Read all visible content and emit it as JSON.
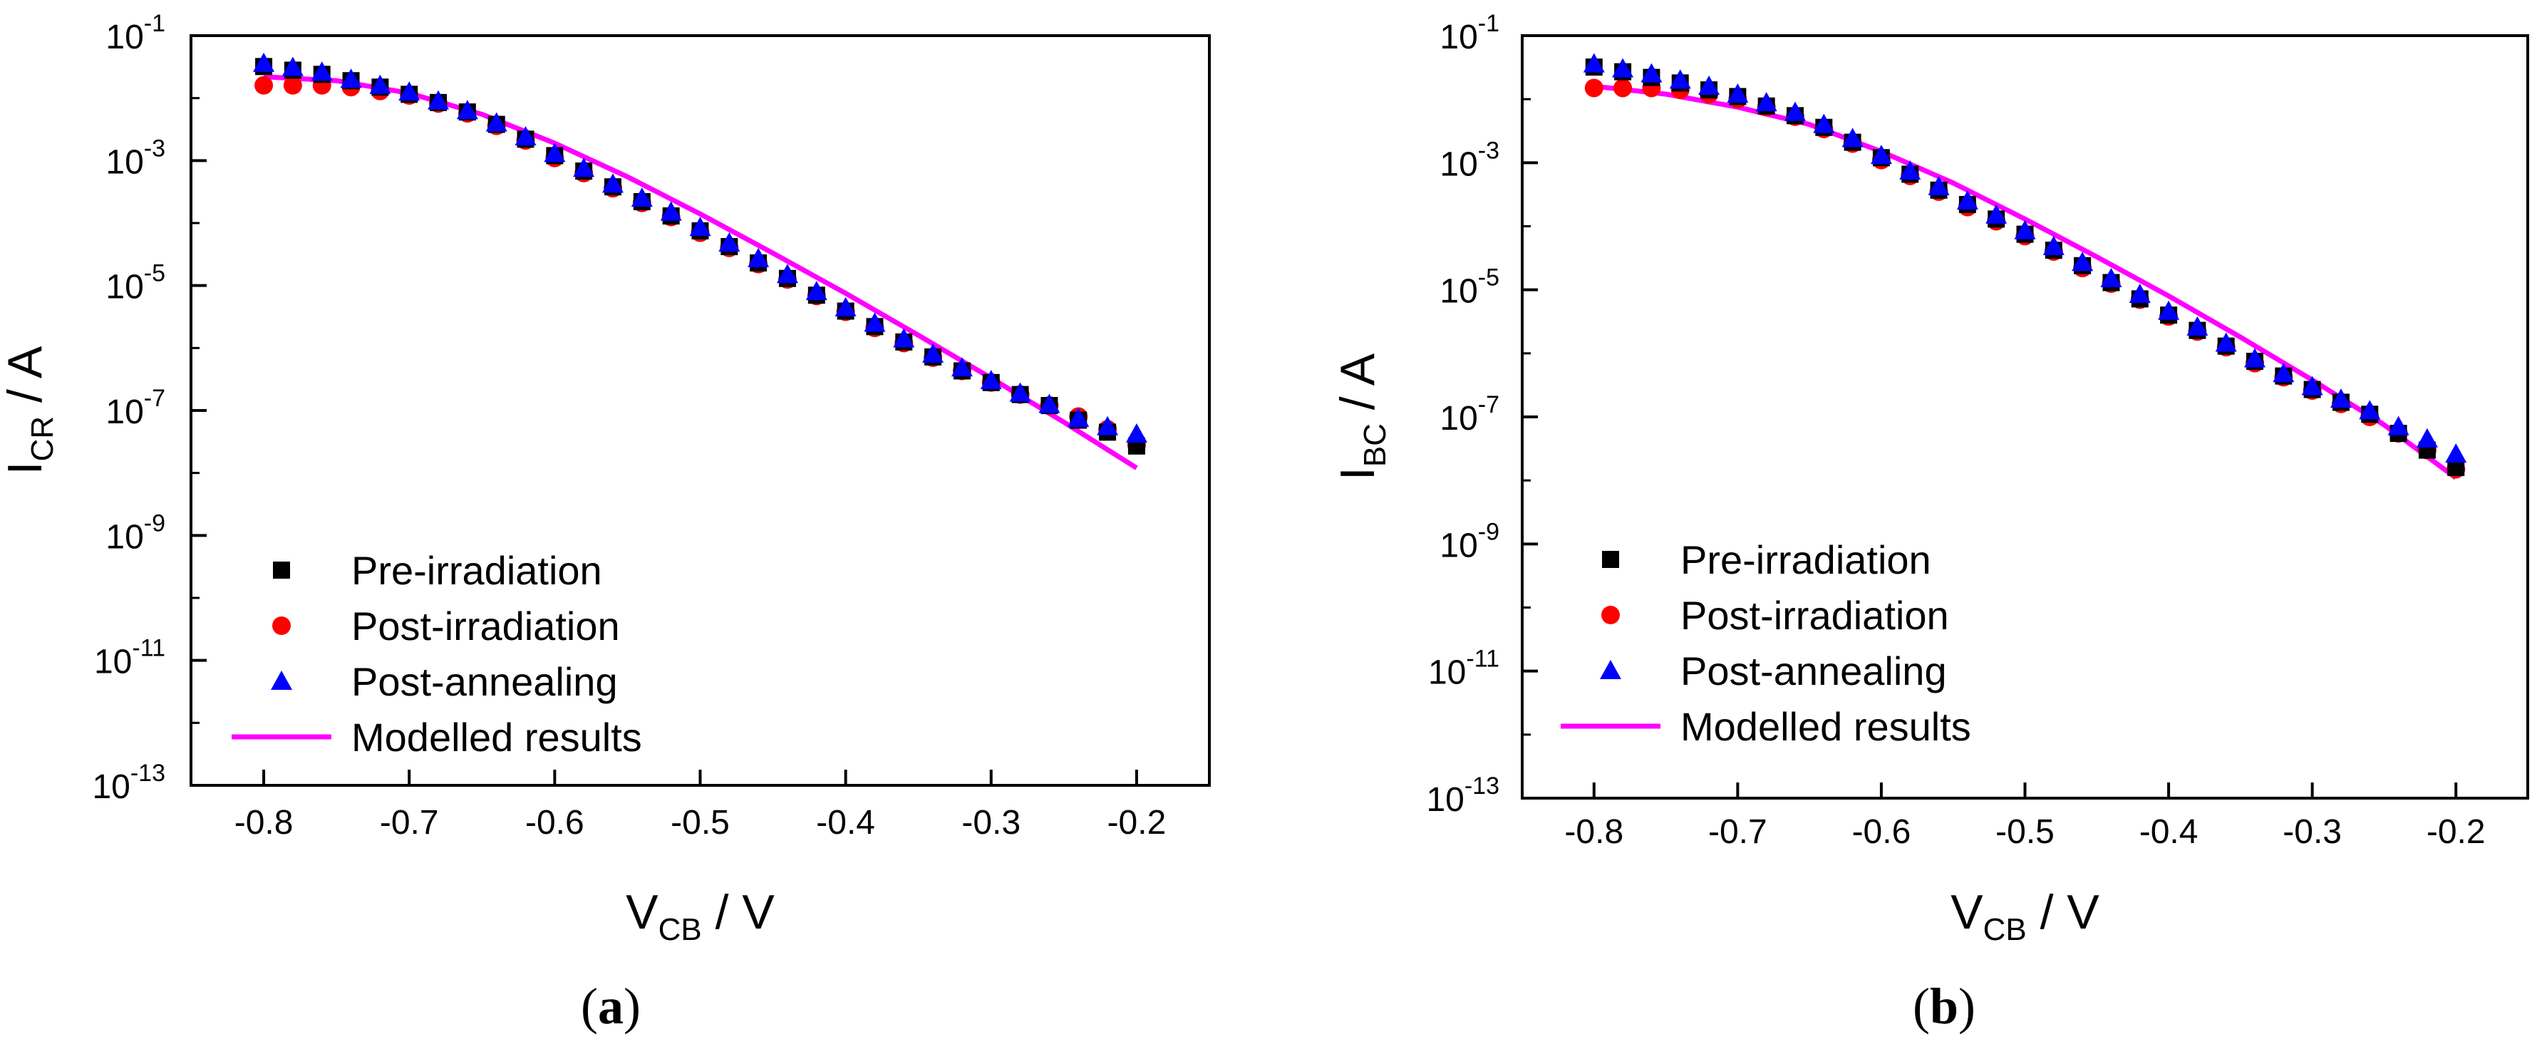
{
  "chart_data": [
    {
      "type": "scatter",
      "panel_label": "a",
      "ylabel_main": "I",
      "ylabel_sub": "CR",
      "ylabel_rest": " / A",
      "xlabel_main": "V",
      "xlabel_sub": "CB",
      "xlabel_rest": " / V",
      "xlim": [
        -0.85,
        -0.15
      ],
      "ylim_exp": [
        -13,
        -1
      ],
      "yscale": "log",
      "x_ticks": [
        -0.8,
        -0.7,
        -0.6,
        -0.5,
        -0.4,
        -0.3,
        -0.2
      ],
      "x_tick_labels": [
        "-0.8",
        "-0.7",
        "-0.6",
        "-0.5",
        "-0.4",
        "-0.3",
        "-0.2"
      ],
      "y_tick_exponents": [
        -1,
        -3,
        -5,
        -7,
        -9,
        -11,
        -13
      ],
      "y_tick_labels": [
        {
          "base": "10",
          "exp": "-1"
        },
        {
          "base": "10",
          "exp": "-3"
        },
        {
          "base": "10",
          "exp": "-5"
        },
        {
          "base": "10",
          "exp": "-7"
        },
        {
          "base": "10",
          "exp": "-9"
        },
        {
          "base": "10",
          "exp": "-11"
        },
        {
          "base": "10",
          "exp": "-13"
        }
      ],
      "legend_position": "lower-left",
      "series": [
        {
          "name": "Pre-irradiation",
          "marker": "square",
          "color": "#000000",
          "x": [
            -0.8,
            -0.78,
            -0.76,
            -0.74,
            -0.72,
            -0.7,
            -0.68,
            -0.66,
            -0.64,
            -0.62,
            -0.6,
            -0.58,
            -0.56,
            -0.54,
            -0.52,
            -0.5,
            -0.48,
            -0.46,
            -0.44,
            -0.42,
            -0.4,
            -0.38,
            -0.36,
            -0.34,
            -0.32,
            -0.3,
            -0.28,
            -0.26,
            -0.24,
            -0.22,
            -0.2
          ],
          "y": [
            0.032,
            0.028,
            0.024,
            0.019,
            0.015,
            0.0115,
            0.0085,
            0.006,
            0.0038,
            0.0022,
            0.0012,
            0.00068,
            0.00038,
            0.00022,
            0.00013,
            7.5e-05,
            4.2e-05,
            2.3e-05,
            1.3e-05,
            7e-06,
            3.9e-06,
            2.2e-06,
            1.25e-06,
            7.2e-07,
            4.3e-07,
            2.8e-07,
            1.8e-07,
            1.2e-07,
            7e-08,
            4.5e-08,
            2.7e-08
          ]
        },
        {
          "name": "Post-irradiation",
          "marker": "circle",
          "color": "#ff0000",
          "x": [
            -0.8,
            -0.78,
            -0.76,
            -0.74,
            -0.72,
            -0.7,
            -0.68,
            -0.66,
            -0.64,
            -0.62,
            -0.6,
            -0.58,
            -0.56,
            -0.54,
            -0.52,
            -0.5,
            -0.48,
            -0.46,
            -0.44,
            -0.42,
            -0.4,
            -0.38,
            -0.36,
            -0.34,
            -0.32,
            -0.3,
            -0.28,
            -0.26,
            -0.24,
            -0.22,
            -0.2
          ],
          "y": [
            0.016,
            0.016,
            0.016,
            0.015,
            0.013,
            0.011,
            0.0082,
            0.0057,
            0.0036,
            0.0021,
            0.0011,
            0.00063,
            0.00036,
            0.00021,
            0.000125,
            7e-05,
            4e-05,
            2.2e-05,
            1.25e-05,
            6.8e-06,
            3.8e-06,
            2.1e-06,
            1.2e-06,
            7e-07,
            4.3e-07,
            2.8e-07,
            1.8e-07,
            1.2e-07,
            8e-08,
            5e-08,
            2.8e-08
          ]
        },
        {
          "name": "Post-annealing",
          "marker": "triangle",
          "color": "#0000ff",
          "x": [
            -0.8,
            -0.78,
            -0.76,
            -0.74,
            -0.72,
            -0.7,
            -0.68,
            -0.66,
            -0.64,
            -0.62,
            -0.6,
            -0.58,
            -0.56,
            -0.54,
            -0.52,
            -0.5,
            -0.48,
            -0.46,
            -0.44,
            -0.42,
            -0.4,
            -0.38,
            -0.36,
            -0.34,
            -0.32,
            -0.3,
            -0.28,
            -0.26,
            -0.24,
            -0.22,
            -0.2
          ],
          "y": [
            0.036,
            0.031,
            0.026,
            0.02,
            0.016,
            0.0125,
            0.009,
            0.0063,
            0.004,
            0.0024,
            0.0013,
            0.00075,
            0.00042,
            0.00025,
            0.00015,
            8.5e-05,
            4.8e-05,
            2.7e-05,
            1.5e-05,
            8e-06,
            4.4e-06,
            2.5e-06,
            1.4e-06,
            8e-07,
            4.8e-07,
            3e-07,
            1.9e-07,
            1.25e-07,
            7.5e-08,
            5.5e-08,
            4.2e-08
          ]
        },
        {
          "name": "Modelled results",
          "marker": "line",
          "color": "#ff00ff",
          "x": [
            -0.8,
            -0.75,
            -0.7,
            -0.65,
            -0.6,
            -0.55,
            -0.5,
            -0.45,
            -0.4,
            -0.35,
            -0.3,
            -0.25,
            -0.2
          ],
          "y": [
            0.022,
            0.019,
            0.012,
            0.0055,
            0.0019,
            0.00055,
            0.00014,
            3.3e-05,
            7.5e-06,
            1.6e-06,
            3.3e-07,
            6.5e-08,
            1.2e-08
          ]
        }
      ]
    },
    {
      "type": "scatter",
      "panel_label": "b",
      "ylabel_main": "I",
      "ylabel_sub": "BC",
      "ylabel_rest": " / A",
      "xlabel_main": "V",
      "xlabel_sub": "CB",
      "xlabel_rest": " / V",
      "xlim": [
        -0.85,
        -0.15
      ],
      "ylim_exp": [
        -13,
        -1
      ],
      "yscale": "log",
      "x_ticks": [
        -0.8,
        -0.7,
        -0.6,
        -0.5,
        -0.4,
        -0.3,
        -0.2
      ],
      "x_tick_labels": [
        "-0.8",
        "-0.7",
        "-0.6",
        "-0.5",
        "-0.4",
        "-0.3",
        "-0.2"
      ],
      "y_tick_exponents": [
        -1,
        -3,
        -5,
        -7,
        -9,
        -11,
        -13
      ],
      "y_tick_labels": [
        {
          "base": "10",
          "exp": "-1"
        },
        {
          "base": "10",
          "exp": "-3"
        },
        {
          "base": "10",
          "exp": "-5"
        },
        {
          "base": "10",
          "exp": "-7"
        },
        {
          "base": "10",
          "exp": "-9"
        },
        {
          "base": "10",
          "exp": "-11"
        },
        {
          "base": "10",
          "exp": "-13"
        }
      ],
      "legend_position": "lower-left",
      "series": [
        {
          "name": "Pre-irradiation",
          "marker": "square",
          "color": "#000000",
          "x": [
            -0.8,
            -0.78,
            -0.76,
            -0.74,
            -0.72,
            -0.7,
            -0.68,
            -0.66,
            -0.64,
            -0.62,
            -0.6,
            -0.58,
            -0.56,
            -0.54,
            -0.52,
            -0.5,
            -0.48,
            -0.46,
            -0.44,
            -0.42,
            -0.4,
            -0.38,
            -0.36,
            -0.34,
            -0.32,
            -0.3,
            -0.28,
            -0.26,
            -0.24,
            -0.22,
            -0.2
          ],
          "y": [
            0.032,
            0.027,
            0.022,
            0.018,
            0.014,
            0.011,
            0.0078,
            0.0055,
            0.0036,
            0.0021,
            0.0012,
            0.00066,
            0.00037,
            0.00022,
            0.00013,
            7.5e-05,
            4.2e-05,
            2.4e-05,
            1.3e-05,
            7.2e-06,
            4e-06,
            2.3e-06,
            1.3e-06,
            7.5e-07,
            4.4e-07,
            2.7e-07,
            1.7e-07,
            1.1e-07,
            5.5e-08,
            3e-08,
            1.6e-08
          ]
        },
        {
          "name": "Post-irradiation",
          "marker": "circle",
          "color": "#ff0000",
          "x": [
            -0.8,
            -0.78,
            -0.76,
            -0.74,
            -0.72,
            -0.7,
            -0.68,
            -0.66,
            -0.64,
            -0.62,
            -0.6,
            -0.58,
            -0.56,
            -0.54,
            -0.52,
            -0.5,
            -0.48,
            -0.46,
            -0.44,
            -0.42,
            -0.4,
            -0.38,
            -0.36,
            -0.34,
            -0.32,
            -0.3,
            -0.28,
            -0.26,
            -0.24,
            -0.22,
            -0.2
          ],
          "y": [
            0.015,
            0.015,
            0.015,
            0.014,
            0.012,
            0.01,
            0.0075,
            0.0053,
            0.0034,
            0.002,
            0.0011,
            0.00062,
            0.00035,
            0.0002,
            0.00012,
            7e-05,
            4e-05,
            2.2e-05,
            1.25e-05,
            7e-06,
            3.8e-06,
            2.2e-06,
            1.25e-06,
            7e-07,
            4.2e-07,
            2.6e-07,
            1.6e-07,
            1e-07,
            5.5e-08,
            3e-08,
            1.5e-08
          ]
        },
        {
          "name": "Post-annealing",
          "marker": "triangle",
          "color": "#0000ff",
          "x": [
            -0.8,
            -0.78,
            -0.76,
            -0.74,
            -0.72,
            -0.7,
            -0.68,
            -0.66,
            -0.64,
            -0.62,
            -0.6,
            -0.58,
            -0.56,
            -0.54,
            -0.52,
            -0.5,
            -0.48,
            -0.46,
            -0.44,
            -0.42,
            -0.4,
            -0.38,
            -0.36,
            -0.34,
            -0.32,
            -0.3,
            -0.28,
            -0.26,
            -0.24,
            -0.22,
            -0.2
          ],
          "y": [
            0.036,
            0.03,
            0.025,
            0.02,
            0.016,
            0.012,
            0.0088,
            0.0062,
            0.004,
            0.0024,
            0.0013,
            0.00074,
            0.00042,
            0.00025,
            0.00015,
            8.5e-05,
            4.8e-05,
            2.7e-05,
            1.5e-05,
            8.5e-06,
            4.6e-06,
            2.6e-06,
            1.45e-06,
            8.2e-07,
            4.8e-07,
            3e-07,
            1.9e-07,
            1.25e-07,
            7e-08,
            4.5e-08,
            2.6e-08
          ]
        },
        {
          "name": "Modelled results",
          "marker": "line",
          "color": "#ff00ff",
          "x": [
            -0.8,
            -0.75,
            -0.7,
            -0.65,
            -0.6,
            -0.55,
            -0.5,
            -0.45,
            -0.4,
            -0.35,
            -0.3,
            -0.25,
            -0.2
          ],
          "y": [
            0.016,
            0.012,
            0.0075,
            0.004,
            0.0015,
            0.00048,
            0.00013,
            3.3e-05,
            8e-06,
            1.8e-06,
            3.8e-07,
            7.5e-08,
            1.1e-08
          ]
        }
      ]
    }
  ]
}
